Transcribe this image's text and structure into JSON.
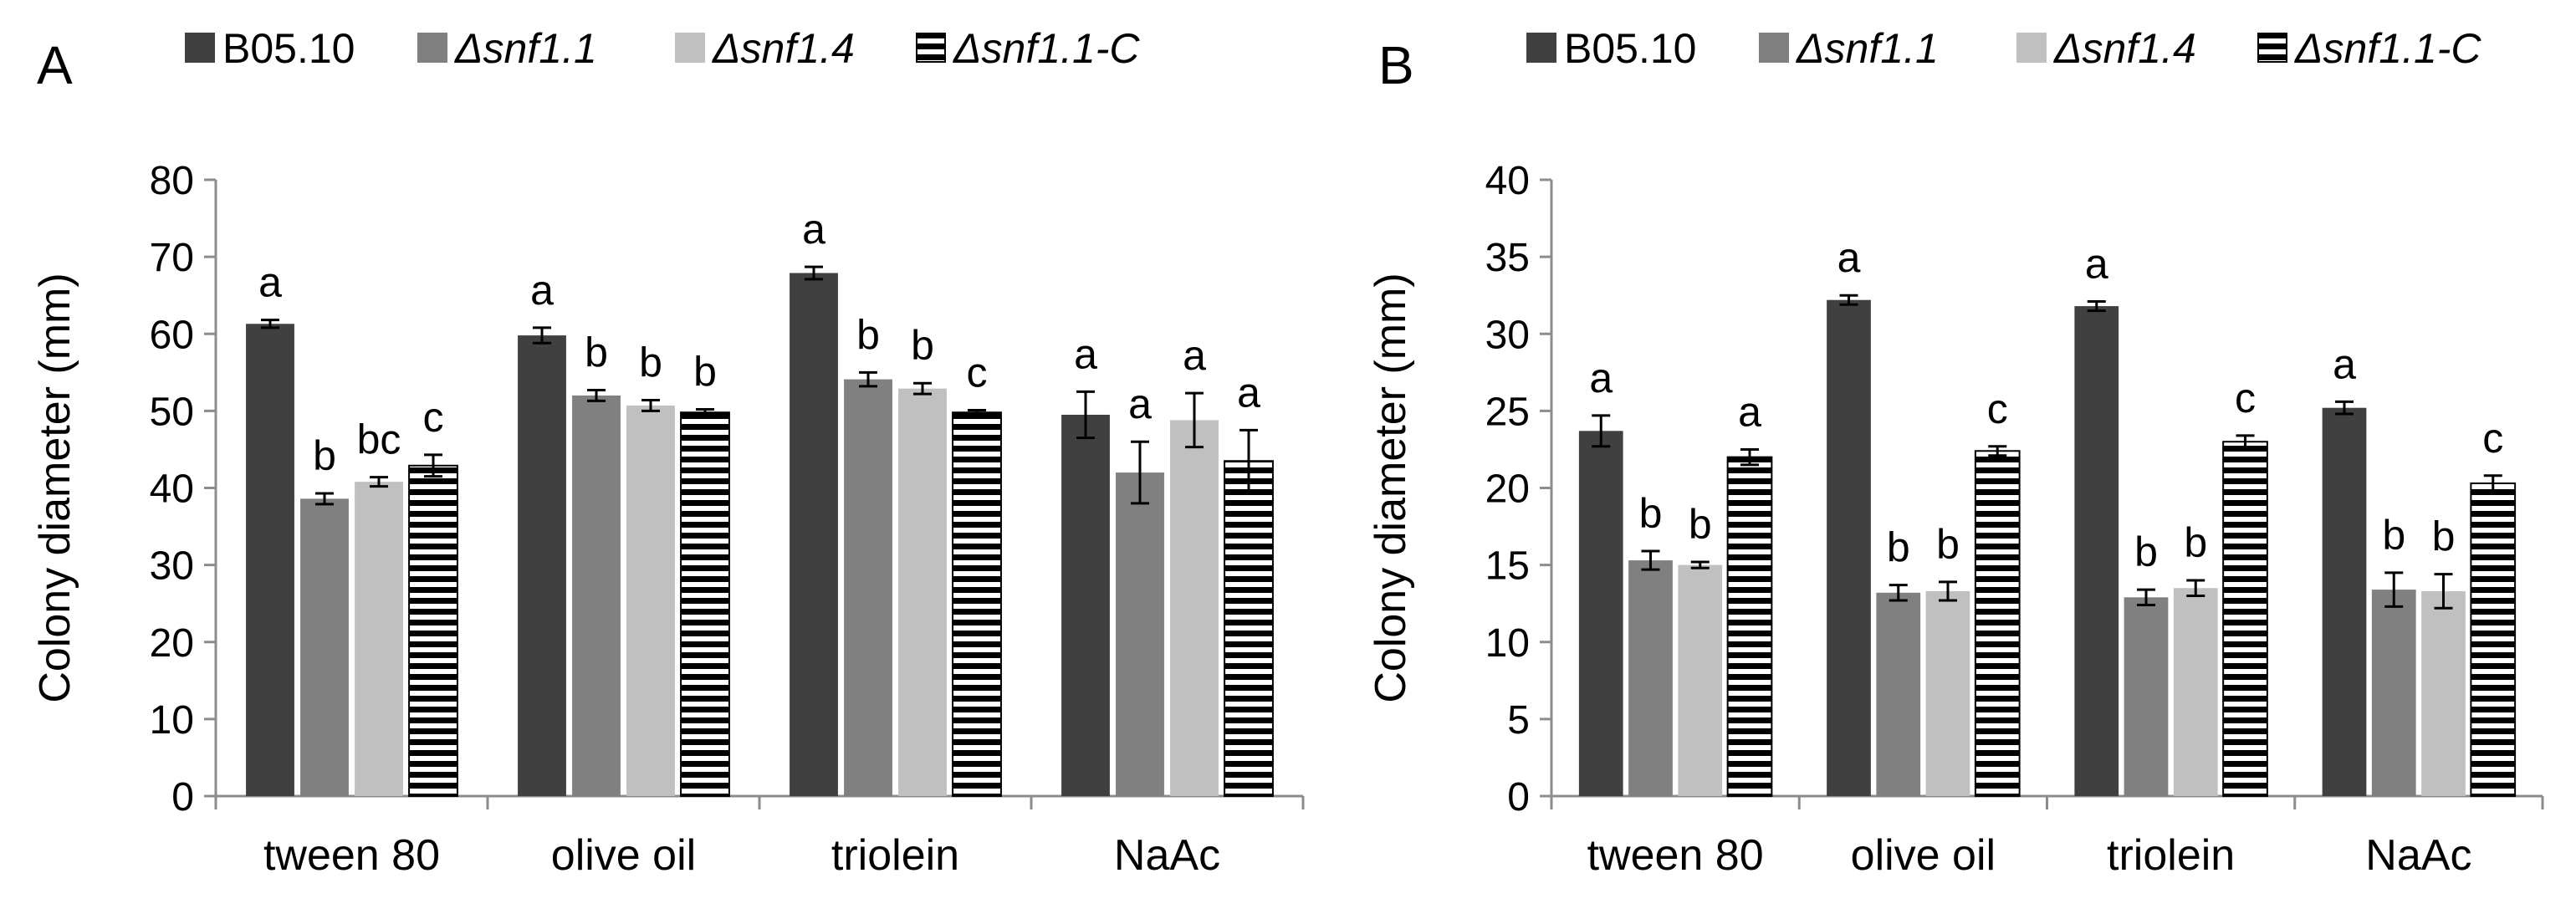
{
  "chart_data": [
    {
      "type": "bar",
      "panel_label": "A",
      "ylabel": "Colony diameter (mm)",
      "ylim": [
        0,
        80
      ],
      "yticks": [
        0,
        10,
        20,
        30,
        40,
        50,
        60,
        70,
        80
      ],
      "categories": [
        "tween 80",
        "olive oil",
        "triolein",
        "NaAc"
      ],
      "legend_position": "top",
      "series": [
        {
          "name": "B05.10",
          "values": [
            61.3,
            59.8,
            67.9,
            49.5
          ],
          "errors": [
            0.5,
            1.0,
            0.8,
            3.0
          ],
          "labels": [
            "a",
            "a",
            "a",
            "a"
          ]
        },
        {
          "name": "Δsnf1.1",
          "values": [
            38.6,
            52.0,
            54.1,
            42.0
          ],
          "errors": [
            0.7,
            0.7,
            0.9,
            4.0
          ],
          "labels": [
            "b",
            "b",
            "b",
            "a"
          ]
        },
        {
          "name": "Δsnf1.4",
          "values": [
            40.8,
            50.7,
            52.9,
            48.8
          ],
          "errors": [
            0.6,
            0.7,
            0.7,
            3.5
          ],
          "labels": [
            "bc",
            "b",
            "b",
            "a"
          ]
        },
        {
          "name": "Δsnf1.1-C",
          "values": [
            42.9,
            49.8,
            49.8,
            43.5
          ],
          "errors": [
            1.4,
            0.4,
            0.3,
            4.0
          ],
          "labels": [
            "c",
            "b",
            "c",
            "a"
          ]
        }
      ]
    },
    {
      "type": "bar",
      "panel_label": "B",
      "ylabel": "Colony diameter (mm)",
      "ylim": [
        0,
        40
      ],
      "yticks": [
        0,
        5,
        10,
        15,
        20,
        25,
        30,
        35,
        40
      ],
      "categories": [
        "tween 80",
        "olive oil",
        "triolein",
        "NaAc"
      ],
      "legend_position": "top",
      "series": [
        {
          "name": "B05.10",
          "values": [
            23.7,
            32.2,
            31.8,
            25.2
          ],
          "errors": [
            1.0,
            0.3,
            0.3,
            0.4
          ],
          "labels": [
            "a",
            "a",
            "a",
            "a"
          ]
        },
        {
          "name": "Δsnf1.1",
          "values": [
            15.3,
            13.2,
            12.9,
            13.4
          ],
          "errors": [
            0.6,
            0.5,
            0.5,
            1.1
          ],
          "labels": [
            "b",
            "b",
            "b",
            "b"
          ]
        },
        {
          "name": "Δsnf1.4",
          "values": [
            15.0,
            13.3,
            13.5,
            13.3
          ],
          "errors": [
            0.2,
            0.6,
            0.5,
            1.1
          ],
          "labels": [
            "b",
            "b",
            "b",
            "b"
          ]
        },
        {
          "name": "Δsnf1.1-C",
          "values": [
            22.0,
            22.4,
            23.0,
            20.3
          ],
          "errors": [
            0.5,
            0.3,
            0.4,
            0.5
          ],
          "labels": [
            "a",
            "c",
            "c",
            "c"
          ]
        }
      ]
    }
  ],
  "styles": {
    "series_fills": [
      "#404040",
      "#808080",
      "#c0c0c0",
      "stripes"
    ],
    "series_borders": [
      "#404040",
      "#808080",
      "#c0c0c0",
      "#000000"
    ],
    "stripe_color": "#000000",
    "axis_color": "#8c8c8c"
  }
}
